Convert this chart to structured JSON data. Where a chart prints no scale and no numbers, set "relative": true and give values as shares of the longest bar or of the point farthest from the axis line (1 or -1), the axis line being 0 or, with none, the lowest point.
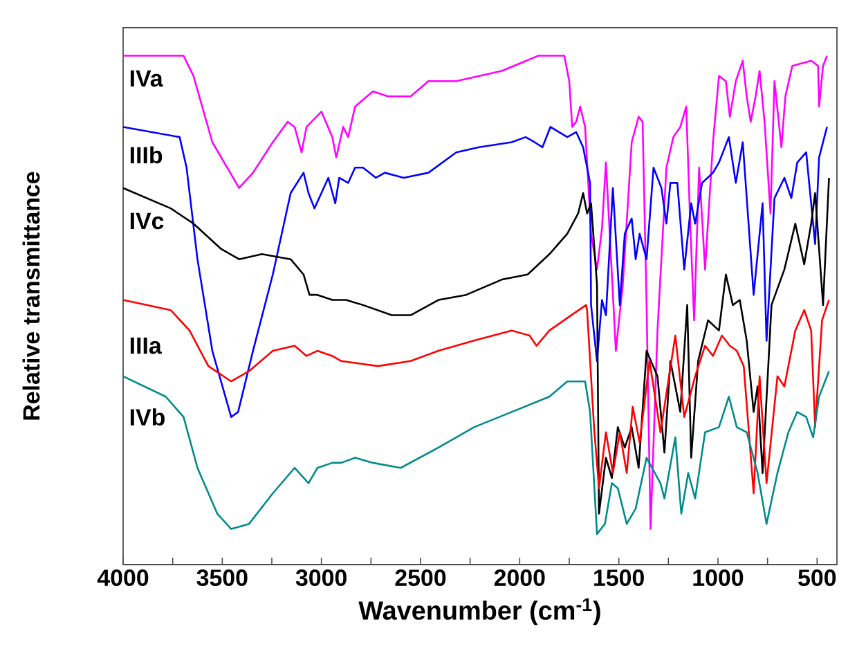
{
  "chart_data": {
    "type": "line",
    "relative": true,
    "xlabel": "Wavenumber (cm$^{-1}$)",
    "ylabel": "Relative transmittance",
    "xlim": [
      4000,
      400
    ],
    "xticks": [
      4000,
      {
        "value": 3750,
        "label": null
      },
      3500,
      {
        "value": 3250,
        "label": null
      },
      3000,
      {
        "value": 2750,
        "label": null
      },
      2500,
      {
        "value": 2250,
        "label": null
      },
      2000,
      {
        "value": 1750,
        "label": null
      },
      1500,
      {
        "value": 1250,
        "label": null
      },
      1000,
      {
        "value": 750,
        "label": null
      },
      500
    ],
    "series": [
      {
        "name": "IVa",
        "color": "#ff00ff",
        "x": [
          4000,
          3695,
          3645,
          3550,
          3415,
          3345,
          3245,
          3170,
          3135,
          3100,
          3075,
          3000,
          2945,
          2925,
          2890,
          2865,
          2830,
          2740,
          2665,
          2550,
          2460,
          2320,
          2090,
          1905,
          1775,
          1750,
          1735,
          1715,
          1695,
          1670,
          1640,
          1610,
          1585,
          1565,
          1535,
          1515,
          1480,
          1435,
          1400,
          1380,
          1360,
          1340,
          1305,
          1260,
          1225,
          1190,
          1160,
          1140,
          1120,
          1095,
          1065,
          1025,
          995,
          960,
          940,
          910,
          875,
          855,
          835,
          810,
          790,
          765,
          735,
          715,
          680,
          660,
          625,
          530,
          495,
          490,
          470,
          450
        ],
        "values": [
          1.0,
          1.0,
          0.96,
          0.83,
          0.74,
          0.77,
          0.83,
          0.87,
          0.86,
          0.81,
          0.86,
          0.89,
          0.84,
          0.8,
          0.86,
          0.84,
          0.9,
          0.93,
          0.92,
          0.92,
          0.95,
          0.95,
          0.97,
          1.0,
          1.0,
          0.95,
          0.86,
          0.87,
          0.9,
          0.86,
          0.65,
          0.58,
          0.66,
          0.79,
          0.57,
          0.42,
          0.55,
          0.83,
          0.88,
          0.87,
          0.51,
          0.07,
          0.46,
          0.78,
          0.84,
          0.86,
          0.9,
          0.67,
          0.48,
          0.78,
          0.58,
          0.83,
          0.96,
          0.95,
          0.88,
          0.95,
          0.99,
          0.92,
          0.87,
          0.92,
          0.97,
          0.87,
          0.69,
          0.95,
          0.82,
          0.92,
          0.98,
          0.99,
          0.98,
          0.9,
          0.98,
          1.0
        ]
      },
      {
        "name": "IIIb",
        "color": "#0000ff",
        "x": [
          4000,
          3715,
          3680,
          3625,
          3550,
          3455,
          3420,
          3345,
          3245,
          3155,
          3090,
          3065,
          3035,
          2965,
          2930,
          2910,
          2865,
          2830,
          2790,
          2725,
          2680,
          2585,
          2460,
          2320,
          2205,
          2040,
          1970,
          1925,
          1885,
          1845,
          1760,
          1715,
          1680,
          1645,
          1640,
          1610,
          1585,
          1565,
          1530,
          1495,
          1470,
          1435,
          1415,
          1395,
          1360,
          1325,
          1285,
          1260,
          1240,
          1205,
          1170,
          1135,
          1115,
          1080,
          1025,
          995,
          945,
          910,
          875,
          820,
          775,
          755,
          715,
          665,
          630,
          600,
          555,
          510,
          490,
          450
        ],
        "values": [
          0.86,
          0.84,
          0.78,
          0.6,
          0.42,
          0.29,
          0.3,
          0.42,
          0.57,
          0.73,
          0.77,
          0.73,
          0.7,
          0.76,
          0.71,
          0.76,
          0.75,
          0.78,
          0.78,
          0.76,
          0.77,
          0.76,
          0.77,
          0.81,
          0.82,
          0.83,
          0.84,
          0.83,
          0.82,
          0.86,
          0.84,
          0.85,
          0.82,
          0.75,
          0.51,
          0.4,
          0.52,
          0.49,
          0.74,
          0.51,
          0.65,
          0.68,
          0.6,
          0.65,
          0.6,
          0.78,
          0.74,
          0.67,
          0.75,
          0.75,
          0.58,
          0.71,
          0.67,
          0.75,
          0.77,
          0.79,
          0.84,
          0.75,
          0.83,
          0.53,
          0.71,
          0.44,
          0.72,
          0.76,
          0.72,
          0.79,
          0.81,
          0.63,
          0.8,
          0.86
        ]
      },
      {
        "name": "IVc",
        "color": "#000000",
        "x": [
          4000,
          3760,
          3645,
          3505,
          3415,
          3300,
          3155,
          3090,
          3060,
          3020,
          2945,
          2875,
          2790,
          2645,
          2550,
          2410,
          2270,
          2090,
          1960,
          1850,
          1760,
          1705,
          1680,
          1660,
          1640,
          1610,
          1600,
          1565,
          1535,
          1505,
          1470,
          1435,
          1400,
          1360,
          1305,
          1270,
          1240,
          1190,
          1155,
          1135,
          1100,
          1050,
          995,
          960,
          925,
          890,
          855,
          820,
          800,
          775,
          730,
          665,
          610,
          565,
          530,
          510,
          470,
          440
        ],
        "values": [
          0.74,
          0.7,
          0.67,
          0.62,
          0.6,
          0.61,
          0.6,
          0.57,
          0.53,
          0.53,
          0.52,
          0.52,
          0.51,
          0.49,
          0.49,
          0.52,
          0.53,
          0.56,
          0.57,
          0.61,
          0.65,
          0.69,
          0.73,
          0.69,
          0.71,
          0.55,
          0.1,
          0.21,
          0.17,
          0.27,
          0.23,
          0.27,
          0.19,
          0.42,
          0.37,
          0.22,
          0.4,
          0.3,
          0.51,
          0.21,
          0.4,
          0.48,
          0.46,
          0.57,
          0.51,
          0.52,
          0.44,
          0.3,
          0.35,
          0.18,
          0.51,
          0.58,
          0.67,
          0.59,
          0.67,
          0.73,
          0.51,
          0.76
        ]
      },
      {
        "name": "IIIa",
        "color": "#ff0000",
        "x": [
          4000,
          3760,
          3665,
          3570,
          3455,
          3365,
          3245,
          3135,
          3075,
          3020,
          2945,
          2900,
          2715,
          2550,
          2410,
          2230,
          2040,
          1950,
          1915,
          1850,
          1740,
          1665,
          1660,
          1625,
          1600,
          1565,
          1530,
          1495,
          1460,
          1430,
          1395,
          1345,
          1290,
          1215,
          1170,
          1115,
          1065,
          1025,
          980,
          940,
          905,
          870,
          820,
          790,
          755,
          700,
          665,
          610,
          565,
          530,
          510,
          475,
          440
        ],
        "values": [
          0.52,
          0.5,
          0.46,
          0.39,
          0.36,
          0.38,
          0.42,
          0.43,
          0.41,
          0.42,
          0.41,
          0.4,
          0.39,
          0.4,
          0.42,
          0.44,
          0.46,
          0.45,
          0.43,
          0.46,
          0.49,
          0.51,
          0.5,
          0.27,
          0.15,
          0.26,
          0.18,
          0.26,
          0.18,
          0.31,
          0.24,
          0.4,
          0.26,
          0.45,
          0.29,
          0.37,
          0.43,
          0.41,
          0.45,
          0.43,
          0.42,
          0.39,
          0.14,
          0.37,
          0.16,
          0.37,
          0.35,
          0.46,
          0.5,
          0.46,
          0.27,
          0.48,
          0.52
        ]
      },
      {
        "name": "IVb",
        "color": "#008b8b",
        "x": [
          4000,
          3785,
          3695,
          3625,
          3525,
          3455,
          3365,
          3245,
          3135,
          3065,
          3020,
          2945,
          2900,
          2830,
          2740,
          2600,
          2410,
          2230,
          2040,
          1850,
          1760,
          1670,
          1645,
          1610,
          1570,
          1535,
          1505,
          1460,
          1415,
          1360,
          1290,
          1270,
          1215,
          1185,
          1150,
          1115,
          1065,
          995,
          945,
          905,
          855,
          800,
          755,
          700,
          645,
          600,
          555,
          520,
          490,
          440
        ],
        "values": [
          0.37,
          0.33,
          0.29,
          0.19,
          0.1,
          0.07,
          0.08,
          0.14,
          0.19,
          0.16,
          0.19,
          0.2,
          0.2,
          0.21,
          0.2,
          0.19,
          0.23,
          0.27,
          0.3,
          0.33,
          0.36,
          0.36,
          0.3,
          0.06,
          0.08,
          0.16,
          0.15,
          0.08,
          0.11,
          0.21,
          0.16,
          0.13,
          0.25,
          0.1,
          0.18,
          0.13,
          0.26,
          0.27,
          0.33,
          0.27,
          0.26,
          0.18,
          0.08,
          0.18,
          0.26,
          0.3,
          0.29,
          0.25,
          0.33,
          0.38
        ]
      }
    ]
  }
}
